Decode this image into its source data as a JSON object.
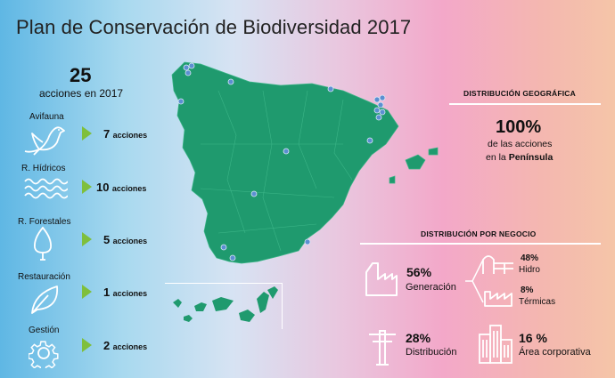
{
  "title": "Plan de Conservación de Biodiversidad 2017",
  "total": {
    "number": "25",
    "label": "acciones en 2017"
  },
  "categories": [
    {
      "label": "Avifauna",
      "count": "7",
      "unit": "acciones",
      "icon": "bird-icon"
    },
    {
      "label": "R. Hídricos",
      "count": "10",
      "unit": "acciones",
      "icon": "water-waves-icon"
    },
    {
      "label": "R. Forestales",
      "count": "5",
      "unit": "acciones",
      "icon": "tree-icon"
    },
    {
      "label": "Restauración",
      "count": "1",
      "unit": "acciones",
      "icon": "leaf-icon"
    },
    {
      "label": "Gestión",
      "count": "2",
      "unit": "acciones",
      "icon": "gear-icon"
    }
  ],
  "geo": {
    "header": "DISTRIBUCIÓN GEOGRÁFICA",
    "percent": "100%",
    "line1": "de las acciones",
    "line2_prefix": "en la ",
    "line2_bold": "Península"
  },
  "business": {
    "header": "DISTRIBUCIÓN POR NEGOCIO",
    "generacion": {
      "pct": "56%",
      "label": "Generación"
    },
    "hidro": {
      "pct": "48%",
      "label": "Hidro"
    },
    "termicas": {
      "pct": "8%",
      "label": "Térmicas"
    },
    "distribucion": {
      "pct": "28%",
      "label": "Distribución"
    },
    "corporativa": {
      "pct": "16 %",
      "label": "Área corporativa"
    }
  },
  "colors": {
    "map": "#1f9a6e",
    "arrow": "#7fbf3c",
    "dot": "#5b8fd1"
  }
}
